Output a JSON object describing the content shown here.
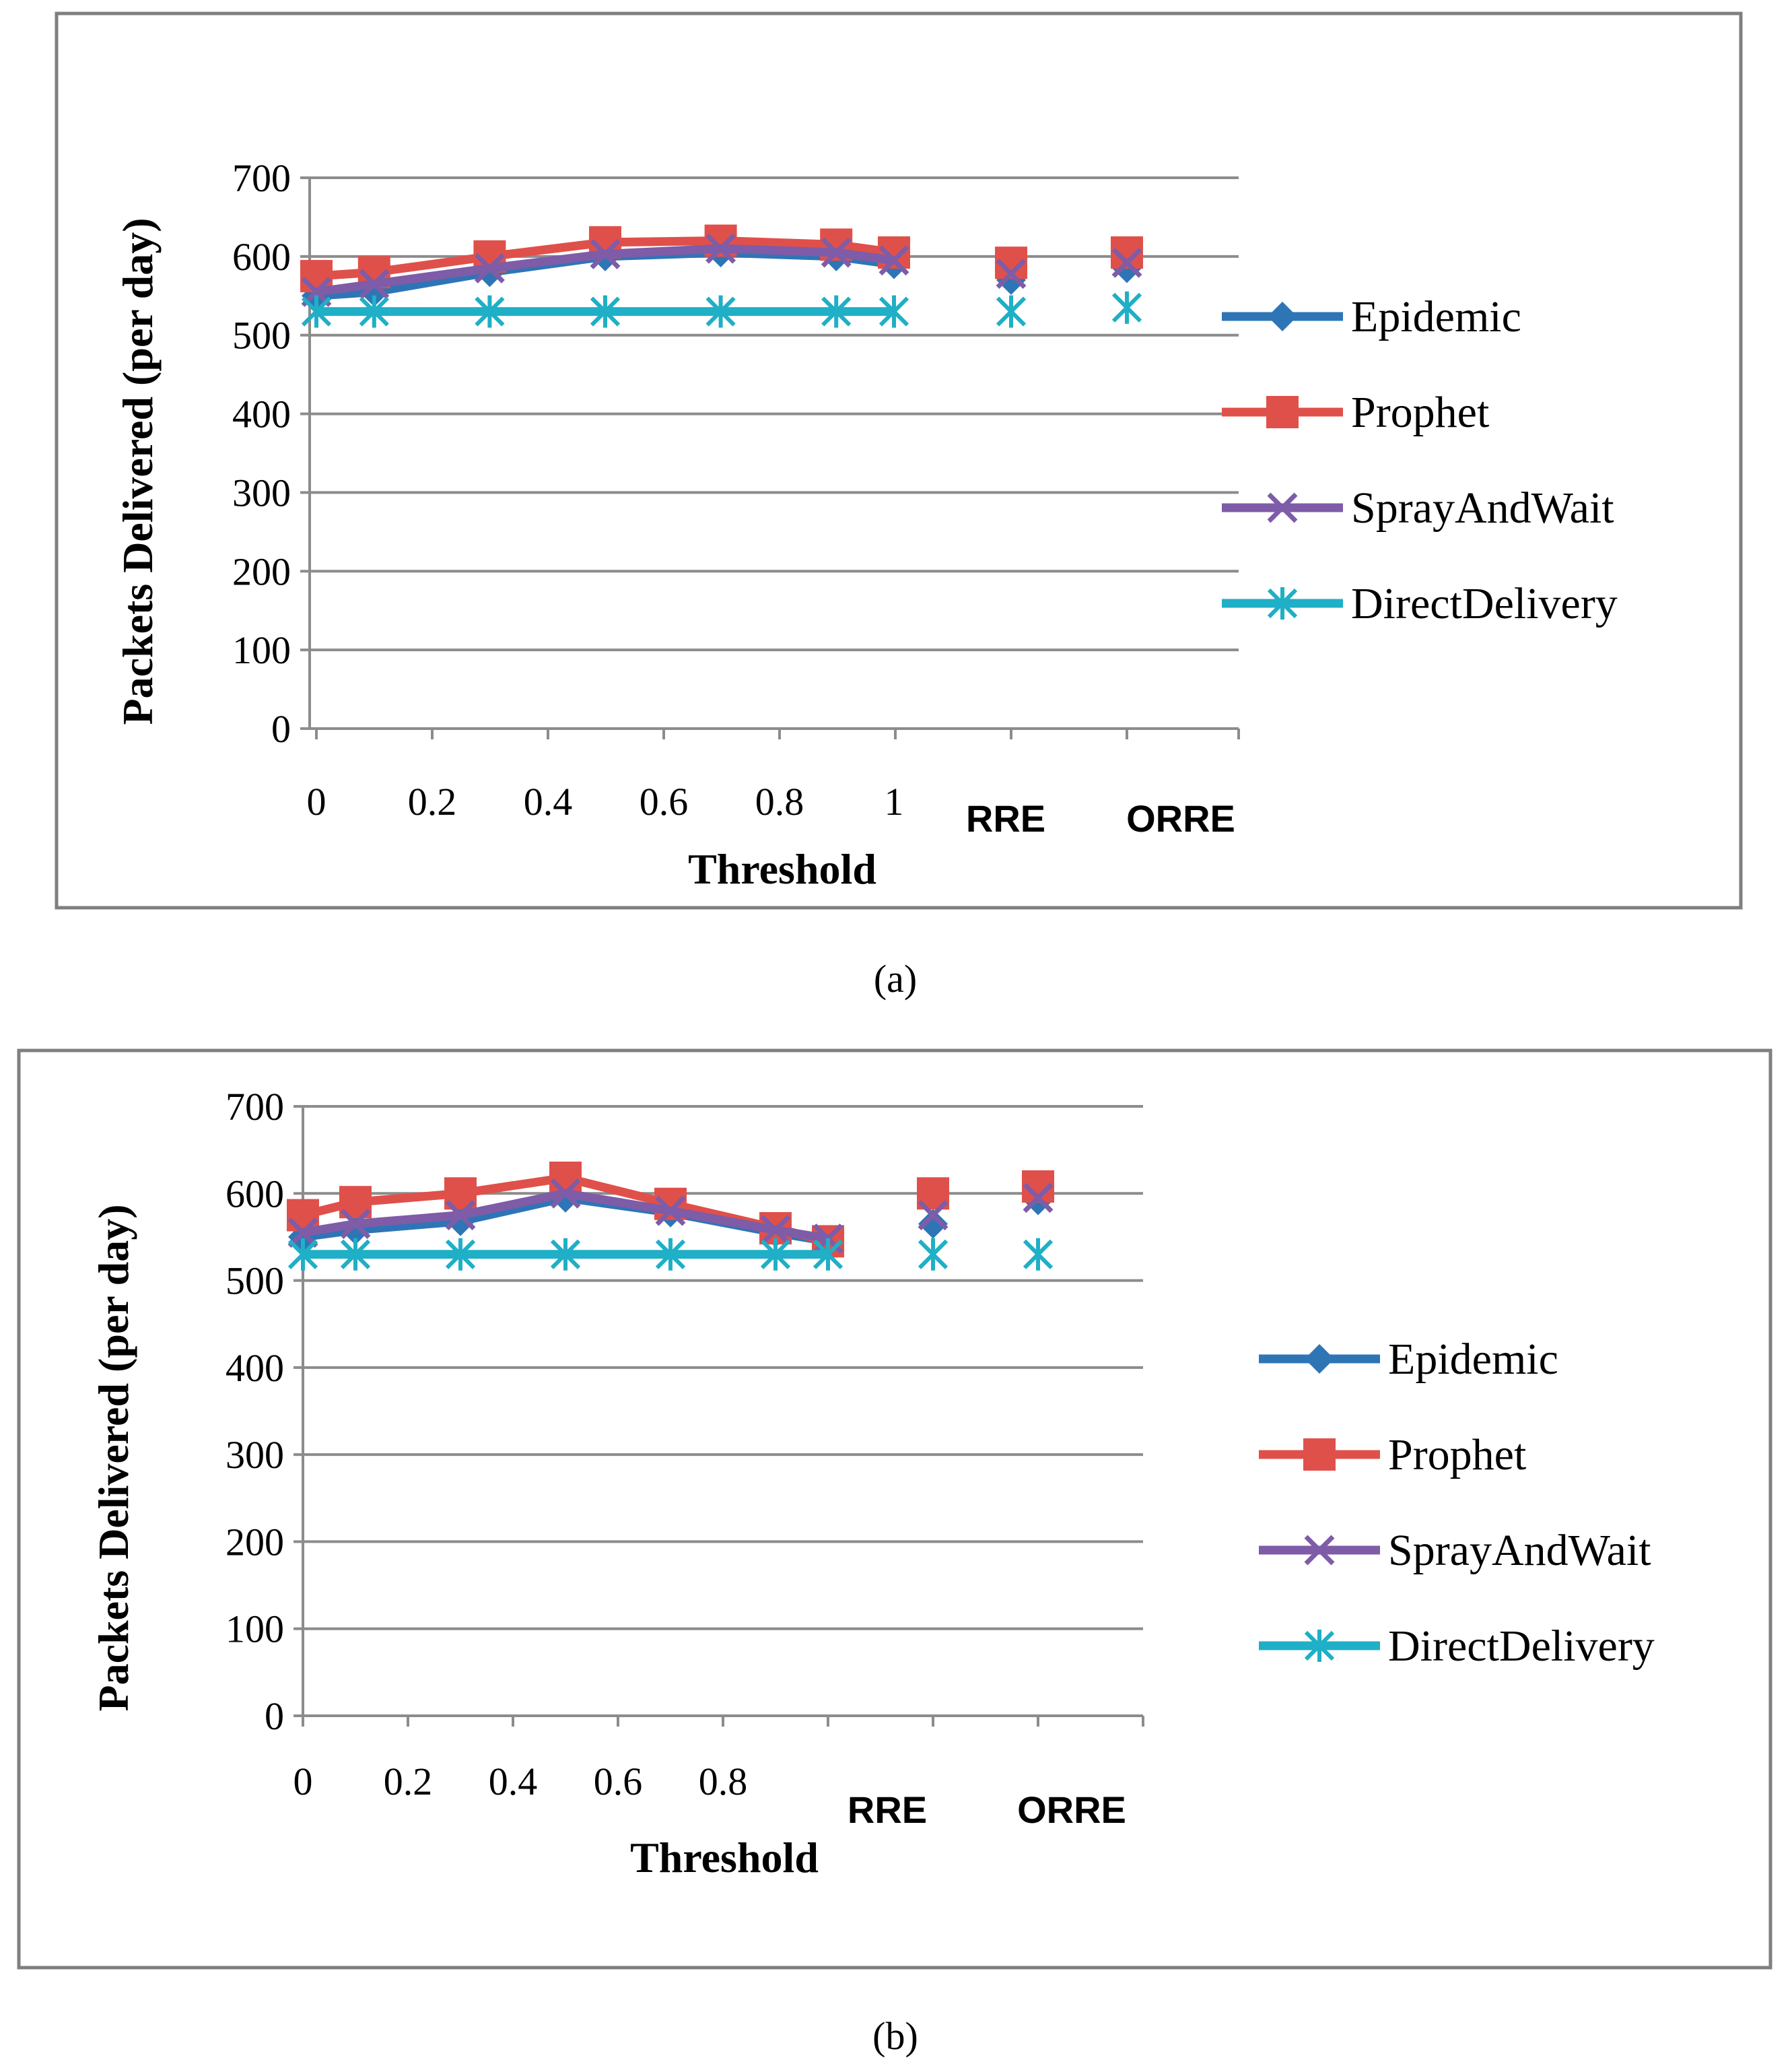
{
  "colors": {
    "Epidemic": "#2E75B6",
    "Prophet": "#E0504A",
    "SprayAndWait": "#7E5CA8",
    "DirectDelivery": "#1FAFC6",
    "grid": "#8C8C8C",
    "frame": "#7F7F7F"
  },
  "chart_data": [
    {
      "panel": "a",
      "caption": "(a)",
      "type": "line",
      "ylabel": "Packets Delivered (per day)",
      "xlabel": "Threshold",
      "ylim": [
        0,
        700
      ],
      "yticks": [
        "0",
        "100",
        "200",
        "300",
        "400",
        "500",
        "600",
        "700"
      ],
      "xtick_labels": [
        "0",
        "0.2",
        "0.4",
        "0.6",
        "0.8",
        "1"
      ],
      "category_labels": [
        "RRE",
        "ORRE"
      ],
      "legend": [
        "Epidemic",
        "Prophet",
        "SprayAndWait",
        "DirectDelivery"
      ],
      "legend_position": "right",
      "grid": true,
      "series": [
        {
          "name": "Epidemic",
          "marker": "diamond",
          "line": [
            [
              0,
              550
            ],
            [
              0.1,
              555
            ],
            [
              0.3,
              580
            ],
            [
              0.5,
              600
            ],
            [
              0.7,
              605
            ],
            [
              0.9,
              600
            ],
            [
              1,
              590
            ]
          ],
          "points": [
            [
              "RRE",
              570
            ],
            [
              "ORRE",
              585
            ]
          ]
        },
        {
          "name": "Prophet",
          "marker": "square",
          "line": [
            [
              0,
              575
            ],
            [
              0.1,
              580
            ],
            [
              0.3,
              600
            ],
            [
              0.5,
              618
            ],
            [
              0.7,
              620
            ],
            [
              0.9,
              615
            ],
            [
              1,
              605
            ]
          ],
          "points": [
            [
              "RRE",
              592
            ],
            [
              "ORRE",
              605
            ]
          ]
        },
        {
          "name": "SprayAndWait",
          "marker": "x",
          "line": [
            [
              0,
              555
            ],
            [
              0.1,
              565
            ],
            [
              0.3,
              585
            ],
            [
              0.5,
              603
            ],
            [
              0.7,
              610
            ],
            [
              0.9,
              605
            ],
            [
              1,
              595
            ]
          ],
          "points": [
            [
              "RRE",
              578
            ],
            [
              "ORRE",
              592
            ]
          ]
        },
        {
          "name": "DirectDelivery",
          "marker": "asterisk",
          "line": [
            [
              0,
              530
            ],
            [
              0.1,
              530
            ],
            [
              0.3,
              530
            ],
            [
              0.5,
              530
            ],
            [
              0.7,
              530
            ],
            [
              0.9,
              530
            ],
            [
              1,
              530
            ]
          ],
          "points": [
            [
              "RRE",
              530
            ],
            [
              "ORRE",
              535
            ]
          ]
        }
      ]
    },
    {
      "panel": "b",
      "caption": "(b)",
      "type": "line",
      "ylabel": "Packets Delivered (per day)",
      "xlabel": "Threshold",
      "ylim": [
        0,
        700
      ],
      "yticks": [
        "0",
        "100",
        "200",
        "300",
        "400",
        "500",
        "600",
        "700"
      ],
      "xtick_labels": [
        "0",
        "0.2",
        "0.4",
        "0.6",
        "0.8"
      ],
      "category_labels": [
        "RRE",
        "ORRE"
      ],
      "legend": [
        "Epidemic",
        "Prophet",
        "SprayAndWait",
        "DirectDelivery"
      ],
      "legend_position": "right",
      "grid": true,
      "series": [
        {
          "name": "Epidemic",
          "marker": "diamond",
          "line": [
            [
              0,
              550
            ],
            [
              0.1,
              558
            ],
            [
              0.3,
              568
            ],
            [
              0.5,
              595
            ],
            [
              0.7,
              578
            ],
            [
              0.9,
              555
            ],
            [
              1,
              545
            ]
          ],
          "points": [
            [
              "RRE",
              565
            ],
            [
              "ORRE",
              592
            ]
          ]
        },
        {
          "name": "Prophet",
          "marker": "square",
          "line": [
            [
              0,
              575
            ],
            [
              0.1,
              590
            ],
            [
              0.3,
              600
            ],
            [
              0.5,
              618
            ],
            [
              0.7,
              588
            ],
            [
              0.9,
              560
            ],
            [
              1,
              545
            ]
          ],
          "points": [
            [
              "RRE",
              600
            ],
            [
              "ORRE",
              608
            ]
          ]
        },
        {
          "name": "SprayAndWait",
          "marker": "x",
          "line": [
            [
              0,
              555
            ],
            [
              0.1,
              565
            ],
            [
              0.3,
              575
            ],
            [
              0.5,
              600
            ],
            [
              0.7,
              580
            ],
            [
              0.9,
              558
            ],
            [
              1,
              548
            ]
          ],
          "points": [
            [
              "RRE",
              575
            ],
            [
              "ORRE",
              595
            ]
          ]
        },
        {
          "name": "DirectDelivery",
          "marker": "asterisk",
          "line": [
            [
              0,
              530
            ],
            [
              0.1,
              530
            ],
            [
              0.3,
              530
            ],
            [
              0.5,
              530
            ],
            [
              0.7,
              530
            ],
            [
              0.9,
              530
            ],
            [
              1,
              530
            ]
          ],
          "points": [
            [
              "RRE",
              530
            ],
            [
              "ORRE",
              530
            ]
          ]
        }
      ]
    }
  ]
}
